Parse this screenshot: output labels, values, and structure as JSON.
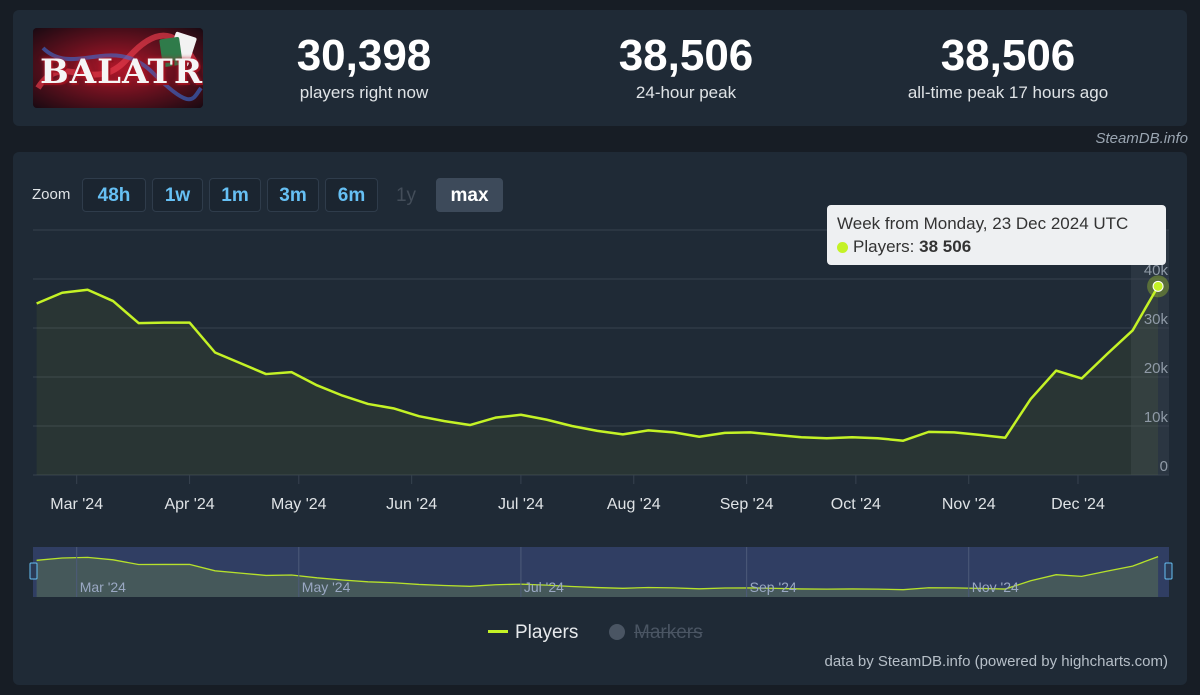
{
  "header": {
    "logo_text": "BALATRO",
    "stats": [
      {
        "value": "30,398",
        "label": "players right now"
      },
      {
        "value": "38,506",
        "label": "24-hour peak"
      },
      {
        "value": "38,506",
        "label": "all-time peak 17 hours ago"
      }
    ],
    "source": "SteamDB.info"
  },
  "zoom": {
    "label": "Zoom",
    "buttons": [
      {
        "label": "48h",
        "state": "enabled"
      },
      {
        "label": "1w",
        "state": "enabled"
      },
      {
        "label": "1m",
        "state": "enabled"
      },
      {
        "label": "3m",
        "state": "enabled"
      },
      {
        "label": "6m",
        "state": "enabled"
      },
      {
        "label": "1y",
        "state": "disabled"
      },
      {
        "label": "max",
        "state": "active"
      }
    ]
  },
  "tooltip": {
    "title": "Week from Monday, 23 Dec 2024 UTC",
    "series_label": "Players:",
    "value": "38 506"
  },
  "legend": {
    "players": "Players",
    "markers": "Markers"
  },
  "footer": {
    "credit": "data by SteamDB.info (powered by highcharts.com)"
  },
  "colors": {
    "line": "#c4f226",
    "background": "#171d25",
    "panel": "#1f2a36",
    "accent": "#66c0f4"
  },
  "chart_data": {
    "type": "line",
    "series": [
      {
        "name": "Players",
        "x": [
          "2024-02-19",
          "2024-02-26",
          "2024-03-04",
          "2024-03-11",
          "2024-03-18",
          "2024-03-25",
          "2024-04-01",
          "2024-04-08",
          "2024-04-15",
          "2024-04-22",
          "2024-04-29",
          "2024-05-06",
          "2024-05-13",
          "2024-05-20",
          "2024-05-27",
          "2024-06-03",
          "2024-06-10",
          "2024-06-17",
          "2024-06-24",
          "2024-07-01",
          "2024-07-08",
          "2024-07-15",
          "2024-07-22",
          "2024-07-29",
          "2024-08-05",
          "2024-08-12",
          "2024-08-19",
          "2024-08-26",
          "2024-09-02",
          "2024-09-09",
          "2024-09-16",
          "2024-09-23",
          "2024-09-30",
          "2024-10-07",
          "2024-10-14",
          "2024-10-21",
          "2024-10-28",
          "2024-11-04",
          "2024-11-11",
          "2024-11-18",
          "2024-11-25",
          "2024-12-02",
          "2024-12-09",
          "2024-12-16",
          "2024-12-23"
        ],
        "values": [
          35000,
          37200,
          37800,
          35500,
          31000,
          31100,
          31100,
          25000,
          22800,
          20600,
          21000,
          18300,
          16200,
          14500,
          13600,
          12000,
          11000,
          10200,
          11700,
          12300,
          11300,
          10000,
          9000,
          8300,
          9100,
          8700,
          7800,
          8600,
          8700,
          8200,
          7700,
          7500,
          7700,
          7500,
          7000,
          8800,
          8700,
          8200,
          7600,
          15500,
          21300,
          19700,
          24700,
          29500,
          38506
        ]
      }
    ],
    "xlabel": "",
    "ylabel": "",
    "x_ticks": [
      "Mar '24",
      "Apr '24",
      "May '24",
      "Jun '24",
      "Jul '24",
      "Aug '24",
      "Sep '24",
      "Oct '24",
      "Nov '24",
      "Dec '24"
    ],
    "y_ticks": [
      "0",
      "10k",
      "20k",
      "30k",
      "40k"
    ],
    "ylim": [
      0,
      50000
    ],
    "grid": true,
    "legend_position": "bottom-center",
    "navigator_ticks": [
      "Mar '24",
      "May '24",
      "Jul '24",
      "Sep '24",
      "Nov '24"
    ]
  }
}
